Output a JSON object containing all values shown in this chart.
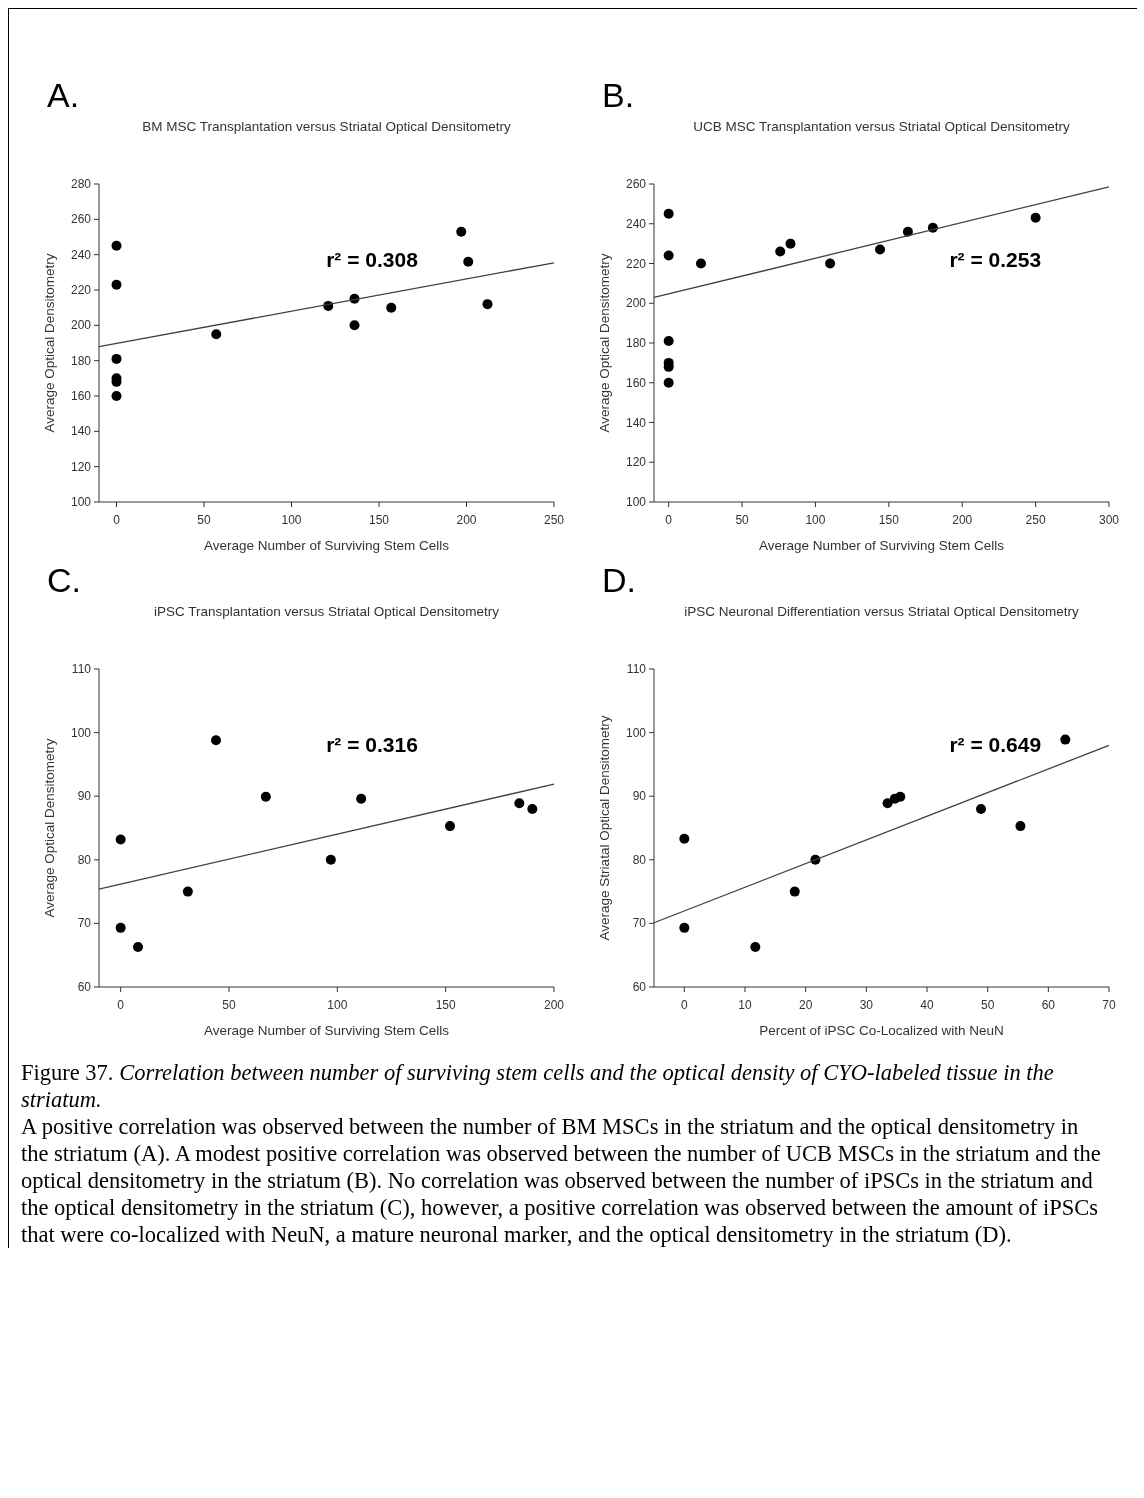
{
  "chart_data": [
    {
      "type": "scatter",
      "title": "BM MSC Transplantation versus Striatal Optical Densitometry",
      "xlabel": "Average Number of Surviving Stem Cells",
      "ylabel": "Average Optical Densitometry",
      "xlim": [
        -10,
        250
      ],
      "ylim": [
        100,
        280
      ],
      "xticks": [
        0,
        50,
        100,
        150,
        200,
        250
      ],
      "yticks": [
        100,
        120,
        140,
        160,
        180,
        200,
        220,
        240,
        260,
        280
      ],
      "annotations": [
        "A.",
        "r² = 0.308"
      ],
      "series": [
        {
          "color": "#000000",
          "marker": "circle",
          "x": [
            0,
            0,
            0,
            0,
            0,
            0,
            57,
            121,
            136,
            136,
            157,
            197,
            201,
            212
          ],
          "values": [
            245,
            223,
            181,
            170,
            168,
            160,
            195,
            211,
            215,
            200,
            210,
            253,
            236,
            212
          ]
        },
        {
          "type": "line",
          "color": "#404040",
          "line_style": "solid",
          "x": [
            -10,
            250
          ],
          "values": [
            187.9,
            235.4
          ]
        }
      ]
    },
    {
      "type": "scatter",
      "title": "UCB MSC Transplantation versus Striatal Optical Densitometry",
      "xlabel": "Average Number of Surviving Stem Cells",
      "ylabel": "Average Optical Densitometry",
      "xlim": [
        -10,
        300
      ],
      "ylim": [
        100,
        260
      ],
      "xticks": [
        0,
        50,
        100,
        150,
        200,
        250,
        300
      ],
      "yticks": [
        100,
        120,
        140,
        160,
        180,
        200,
        220,
        240,
        260
      ],
      "annotations": [
        "B.",
        "r² = 0.253"
      ],
      "series": [
        {
          "color": "#000000",
          "marker": "circle",
          "x": [
            0,
            0,
            0,
            0,
            0,
            0,
            22,
            76,
            83,
            110,
            144,
            163,
            180,
            250
          ],
          "values": [
            245,
            224,
            181,
            170,
            168,
            160,
            220,
            226,
            230,
            220,
            227,
            236,
            238,
            243
          ]
        },
        {
          "type": "line",
          "color": "#404040",
          "line_style": "solid",
          "x": [
            -10,
            300
          ],
          "values": [
            202.9,
            258.6
          ]
        }
      ]
    },
    {
      "type": "scatter",
      "title": "iPSC Transplantation versus Striatal Optical Densitometry",
      "xlabel": "Average Number of Surviving Stem Cells",
      "ylabel": "Average Optical Densitometry",
      "xlim": [
        -10,
        200
      ],
      "ylim": [
        60,
        110
      ],
      "xticks": [
        0,
        50,
        100,
        150,
        200
      ],
      "yticks": [
        60,
        70,
        80,
        90,
        100,
        110
      ],
      "annotations": [
        "C.",
        "r² = 0.316"
      ],
      "series": [
        {
          "color": "#000000",
          "marker": "circle",
          "x": [
            0,
            0,
            8,
            31,
            44,
            67,
            97,
            111,
            152,
            184,
            190
          ],
          "values": [
            83.2,
            69.3,
            66.3,
            75,
            98.8,
            89.9,
            80,
            89.6,
            85.3,
            88.9,
            88
          ]
        },
        {
          "type": "line",
          "color": "#404040",
          "line_style": "solid",
          "x": [
            -10,
            200
          ],
          "values": [
            75.4,
            91.9
          ]
        }
      ]
    },
    {
      "type": "scatter",
      "title": "iPSC Neuronal Differentiation versus Striatal Optical Densitometry",
      "xlabel": "Percent of iPSC Co-Localized with NeuN",
      "ylabel": "Average Striatal Optical Densitometry",
      "xlim": [
        -5,
        70
      ],
      "ylim": [
        60,
        110
      ],
      "xticks": [
        0,
        10,
        20,
        30,
        40,
        50,
        60,
        70
      ],
      "yticks": [
        60,
        70,
        80,
        90,
        100,
        110
      ],
      "annotations": [
        "D.",
        "r² = 0.649"
      ],
      "series": [
        {
          "color": "#000000",
          "marker": "circle",
          "x": [
            0,
            0,
            11.7,
            18.2,
            21.6,
            33.5,
            34.7,
            35.6,
            48.9,
            55.4,
            62.8
          ],
          "values": [
            83.3,
            69.3,
            66.3,
            75,
            80,
            88.9,
            89.6,
            89.9,
            88,
            85.3,
            98.9
          ]
        },
        {
          "type": "line",
          "color": "#404040",
          "line_style": "solid",
          "x": [
            -5,
            70
          ],
          "values": [
            70.1,
            98.0
          ]
        }
      ]
    },
    {
      "type": "other",
      "annotations": [
        "Figure 37. Correlation between number of surviving stem cells and the optical density of CYO-labeled tissue in the striatum.",
        "A positive correlation was observed between the number of BM MSCs in the striatum and the optical densitometry in the striatum (A). A modest positive correlation was observed between the number of UCB MSCs in the striatum and the optical densitometry in the striatum (B). No correlation was observed between the number of iPSCs in the striatum and the optical densitometry in the striatum (C), however, a positive correlation was observed between the amount of iPSCs that were co-localized with NeuN, a mature neuronal marker, and the optical densitometry in the striatum (D)."
      ]
    }
  ]
}
